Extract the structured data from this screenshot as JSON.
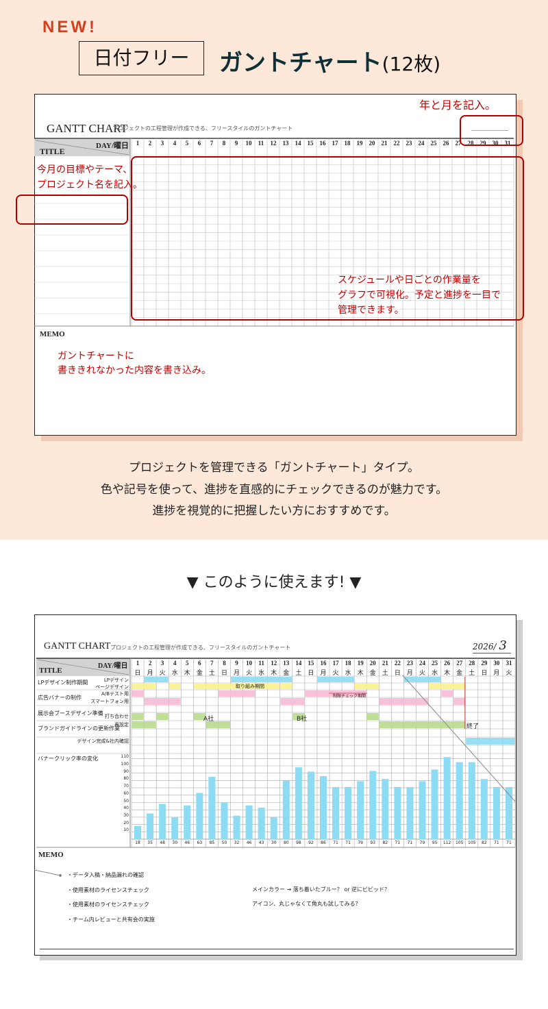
{
  "hero": {
    "badge": "NEW!",
    "boxed_label": "日付フリー",
    "title": "ガントチャート",
    "count": "(12枚)"
  },
  "template": {
    "title": "GANTT CHART",
    "subtitle": "プロジェクトの工程管理が作成できる、フリースタイルのガントチャート",
    "day_header": "DAY/曜日",
    "title_header": "TITLE",
    "memo_label": "MEMO",
    "days": [
      "1",
      "2",
      "3",
      "4",
      "5",
      "6",
      "7",
      "8",
      "9",
      "10",
      "11",
      "12",
      "13",
      "14",
      "15",
      "16",
      "17",
      "18",
      "19",
      "20",
      "21",
      "22",
      "23",
      "24",
      "25",
      "26",
      "27",
      "28",
      "29",
      "30",
      "31"
    ],
    "annotations": {
      "year_month": "年と月を記入。",
      "goal_1": "今月の目標やテーマ、",
      "goal_2": "プロジェクト名を記入。",
      "schedule_1": "スケジュールや日ごとの作業量を",
      "schedule_2": "グラフで可視化。予定と進捗を一目で",
      "schedule_3": "管理できます。",
      "memo_1": "ガントチャートに",
      "memo_2": "書ききれなかった内容を書き込み。"
    },
    "accent_color": "#c00000"
  },
  "description": [
    "プロジェクトを管理できる「ガントチャート」タイプ。",
    "色や記号を使って、進捗を直感的にチェックできるのが魅力です。",
    "進捗を視覚的に把握したい方におすすめです。"
  ],
  "example_heading": "▼ このように使えます! ▼",
  "example": {
    "year": "2026/",
    "month": "3",
    "weekdays": [
      "日",
      "月",
      "火",
      "水",
      "木",
      "金",
      "土",
      "日",
      "月",
      "火",
      "水",
      "木",
      "金",
      "土",
      "日",
      "月",
      "火",
      "水",
      "木",
      "金",
      "土",
      "日",
      "月",
      "火",
      "水",
      "木",
      "金",
      "土",
      "日",
      "月",
      "火"
    ],
    "groups": [
      "LPデザイン制作期間",
      "広告バナーの制作",
      "展示会ブースデザイン準備",
      "ブランドガイドラインの更新作業"
    ],
    "rows": [
      "LPデザイン",
      "ページデザイン",
      "A/Bテスト用",
      "スマートフォン用",
      "",
      "打ち合わせ",
      "再設定",
      "",
      "デザイン完成&社内確認"
    ],
    "colors": {
      "blue": "#8ddcf3",
      "yellow": "#fbf28c",
      "pink": "#f6bad6",
      "green": "#b7dc8a",
      "red": "#e03030"
    },
    "bars": [
      {
        "row": 0,
        "start": 2,
        "end": 3,
        "color": "blue"
      },
      {
        "row": 0,
        "start": 9,
        "end": 13,
        "color": "blue"
      },
      {
        "row": 0,
        "start": 16,
        "end": 18,
        "color": "blue"
      },
      {
        "row": 0,
        "start": 23,
        "end": 25,
        "color": "blue"
      },
      {
        "row": 1,
        "start": 1,
        "end": 2,
        "color": "yellow"
      },
      {
        "row": 1,
        "start": 4,
        "end": 4,
        "color": "yellow"
      },
      {
        "row": 1,
        "start": 6,
        "end": 12,
        "color": "yellow"
      },
      {
        "row": 1,
        "start": 13,
        "end": 13,
        "color": "yellow"
      },
      {
        "row": 1,
        "start": 19,
        "end": 20,
        "color": "yellow"
      },
      {
        "row": 1,
        "start": 25,
        "end": 27,
        "color": "yellow"
      },
      {
        "row": 2,
        "start": 1,
        "end": 1,
        "color": "pink"
      },
      {
        "row": 2,
        "start": 8,
        "end": 10,
        "color": "pink"
      },
      {
        "row": 2,
        "start": 15,
        "end": 19,
        "color": "pink"
      },
      {
        "row": 2,
        "start": 26,
        "end": 26,
        "color": "pink"
      },
      {
        "row": 3,
        "start": 2,
        "end": 4,
        "color": "pink"
      },
      {
        "row": 3,
        "start": 13,
        "end": 14,
        "color": "pink"
      },
      {
        "row": 3,
        "start": 21,
        "end": 24,
        "color": "pink"
      },
      {
        "row": 3,
        "start": 27,
        "end": 27,
        "color": "pink"
      },
      {
        "row": 5,
        "start": 1,
        "end": 1,
        "color": "green"
      },
      {
        "row": 5,
        "start": 3,
        "end": 3,
        "color": "green"
      },
      {
        "row": 5,
        "start": 6,
        "end": 6,
        "color": "green"
      },
      {
        "row": 5,
        "start": 14,
        "end": 14,
        "color": "green"
      },
      {
        "row": 5,
        "start": 20,
        "end": 20,
        "color": "green"
      },
      {
        "row": 6,
        "start": 1,
        "end": 2,
        "color": "green"
      },
      {
        "row": 6,
        "start": 7,
        "end": 8,
        "color": "green"
      },
      {
        "row": 6,
        "start": 21,
        "end": 27,
        "color": "green"
      },
      {
        "row": 8,
        "start": 28,
        "end": 31,
        "color": "blue"
      }
    ],
    "bar_notes": {
      "work_period": "取り組み期間",
      "check_period": "制限チェック期間",
      "company_a": "A社",
      "company_b": "B社",
      "done": "終了"
    },
    "memo": {
      "label": "MEMO",
      "left": [
        "・データ入稿・納品漏れの確認",
        "・使用素材のライセンスチェック",
        "・使用素材のライセンスチェック",
        "・チーム内レビューと共有会の実施"
      ],
      "right": [
        "メインカラー → 落ち着いたブルー？ or 逆にビビッド？",
        "アイコン、丸じゃなくて角丸も試してみる？"
      ]
    }
  },
  "chart_data": {
    "type": "bar",
    "title": "バナークリック率の変化",
    "categories": [
      "1",
      "2",
      "3",
      "4",
      "5",
      "6",
      "7",
      "8",
      "9",
      "10",
      "11",
      "12",
      "13",
      "14",
      "15",
      "16",
      "17",
      "18",
      "19",
      "20",
      "21",
      "22",
      "23",
      "24",
      "25",
      "26",
      "27",
      "28",
      "29",
      "30",
      "31"
    ],
    "values": [
      18,
      35,
      48,
      30,
      46,
      63,
      85,
      50,
      32,
      46,
      43,
      30,
      80,
      98,
      92,
      86,
      71,
      71,
      79,
      93,
      82,
      71,
      71,
      79,
      95,
      112,
      105,
      105,
      82,
      71,
      71
    ],
    "yticks": [
      10,
      20,
      30,
      40,
      50,
      60,
      70,
      80,
      90,
      100,
      110
    ],
    "ylim": [
      0,
      112
    ],
    "grid": true,
    "color": "#8ddcf3"
  }
}
